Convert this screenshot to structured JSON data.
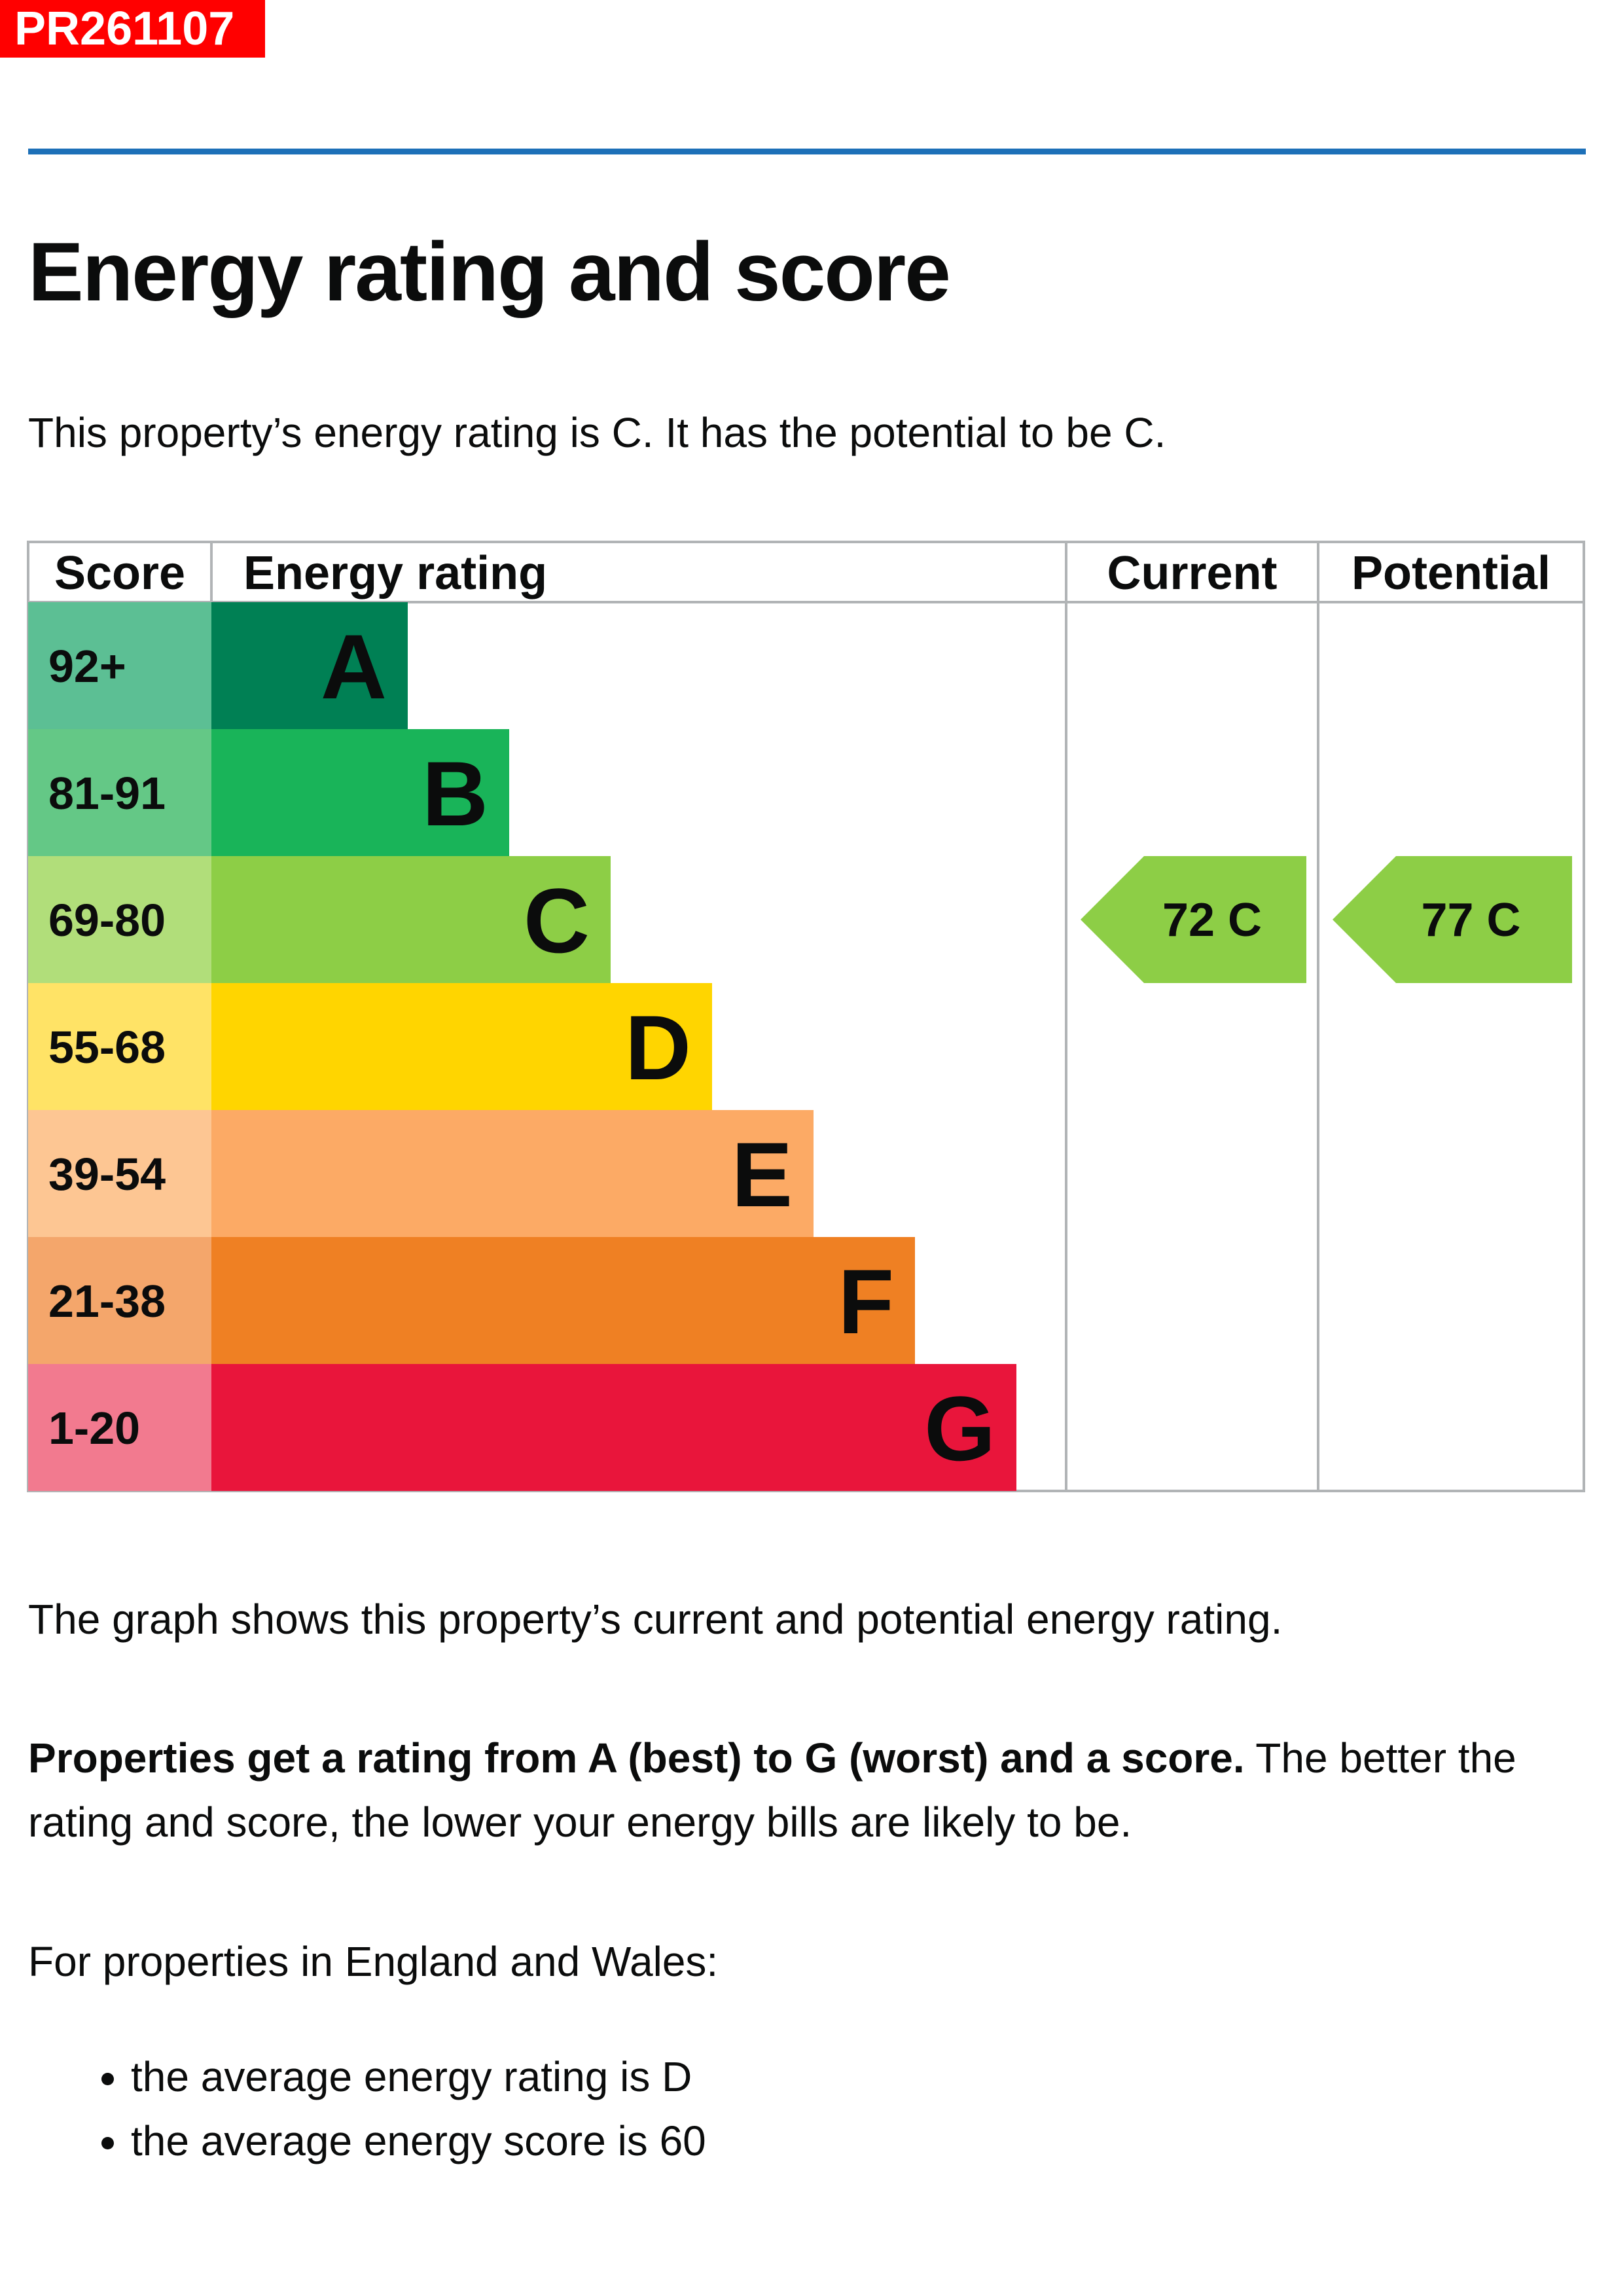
{
  "reference": "PR261107",
  "heading": "Energy rating and score",
  "summary": "This property’s energy rating is C. It has the potential to be C.",
  "chart_data": {
    "type": "bar",
    "headers": {
      "score": "Score",
      "rating": "Energy rating",
      "current": "Current",
      "potential": "Potential"
    },
    "bands": [
      {
        "letter": "A",
        "range": "92+",
        "color": "#008054",
        "light": "#5cbf94"
      },
      {
        "letter": "B",
        "range": "81-91",
        "color": "#19b459",
        "light": "#64c886"
      },
      {
        "letter": "C",
        "range": "69-80",
        "color": "#8dce46",
        "light": "#b1de7a"
      },
      {
        "letter": "D",
        "range": "55-68",
        "color": "#ffd500",
        "light": "#ffe366"
      },
      {
        "letter": "E",
        "range": "39-54",
        "color": "#fcaa65",
        "light": "#fdc693"
      },
      {
        "letter": "F",
        "range": "21-38",
        "color": "#ef8023",
        "light": "#f4a66b"
      },
      {
        "letter": "G",
        "range": "1-20",
        "color": "#e9153b",
        "light": "#f27a8f"
      }
    ],
    "current": {
      "score": 72,
      "band": "C",
      "label": "72  C"
    },
    "potential": {
      "score": 77,
      "band": "C",
      "label": "77  C"
    }
  },
  "graph_note": "The graph shows this property’s current and potential energy rating.",
  "rating_bold": "Properties get a rating from A (best) to G (worst) and a score.",
  "rating_rest": " The better the rating and score, the lower your energy bills are likely to be.",
  "region_intro": "For properties in England and Wales:",
  "averages": [
    "the average energy rating is D",
    "the average energy score is 60"
  ]
}
